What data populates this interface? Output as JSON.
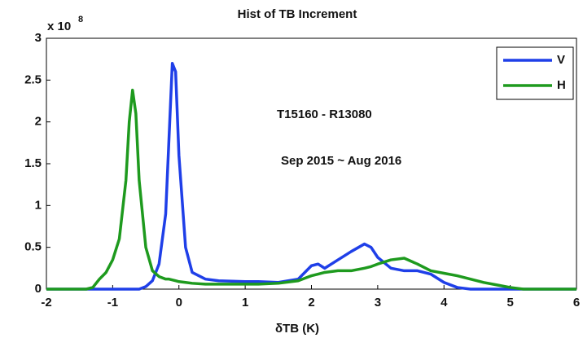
{
  "chart_data": {
    "type": "line",
    "title": "Hist of TB Increment",
    "xlabel": "δTB (K)",
    "y_scale_label": "x 10",
    "y_scale_exponent": "8",
    "annotations": [
      "T15160 - R13080",
      "Sep 2015 ~ Aug 2016"
    ],
    "x": [
      -2,
      -1.4,
      -1.3,
      -1.2,
      -1.1,
      -1.0,
      -0.9,
      -0.8,
      -0.75,
      -0.7,
      -0.65,
      -0.6,
      -0.5,
      -0.4,
      -0.3,
      -0.2,
      -0.15,
      -0.1,
      -0.05,
      0,
      0.1,
      0.2,
      0.4,
      0.6,
      1.0,
      1.2,
      1.5,
      1.8,
      1.9,
      2.0,
      2.1,
      2.2,
      2.4,
      2.6,
      2.8,
      2.9,
      3.0,
      3.2,
      3.4,
      3.6,
      3.8,
      4.0,
      4.2,
      4.4,
      4.6,
      4.8,
      5.0,
      5.2,
      6
    ],
    "series": [
      {
        "name": "V",
        "color": "#1f3fe8",
        "values": [
          0,
          0,
          0,
          0,
          0,
          0,
          0,
          0,
          0,
          0,
          0,
          0,
          0.03,
          0.1,
          0.3,
          0.9,
          1.8,
          2.7,
          2.6,
          1.6,
          0.5,
          0.2,
          0.12,
          0.1,
          0.09,
          0.09,
          0.08,
          0.12,
          0.2,
          0.28,
          0.3,
          0.25,
          0.35,
          0.45,
          0.54,
          0.5,
          0.38,
          0.25,
          0.22,
          0.22,
          0.18,
          0.08,
          0.02,
          0,
          0,
          0,
          0,
          0,
          0
        ]
      },
      {
        "name": "H",
        "color": "#1e9a1e",
        "values": [
          0,
          0,
          0.02,
          0.12,
          0.2,
          0.35,
          0.6,
          1.3,
          2.0,
          2.38,
          2.1,
          1.3,
          0.5,
          0.22,
          0.15,
          0.12,
          0.12,
          0.11,
          0.1,
          0.09,
          0.08,
          0.07,
          0.06,
          0.06,
          0.06,
          0.06,
          0.07,
          0.1,
          0.13,
          0.16,
          0.18,
          0.2,
          0.22,
          0.22,
          0.25,
          0.27,
          0.3,
          0.35,
          0.37,
          0.3,
          0.22,
          0.19,
          0.16,
          0.12,
          0.08,
          0.05,
          0.02,
          0,
          0
        ]
      }
    ],
    "xlim": [
      -2,
      6
    ],
    "xticks": [
      -2,
      -1,
      0,
      1,
      2,
      3,
      4,
      5,
      6
    ],
    "ylim": [
      0,
      3
    ],
    "yticks": [
      0,
      0.5,
      1,
      1.5,
      2,
      2.5,
      3
    ],
    "grid": false,
    "legend": "upper right"
  }
}
